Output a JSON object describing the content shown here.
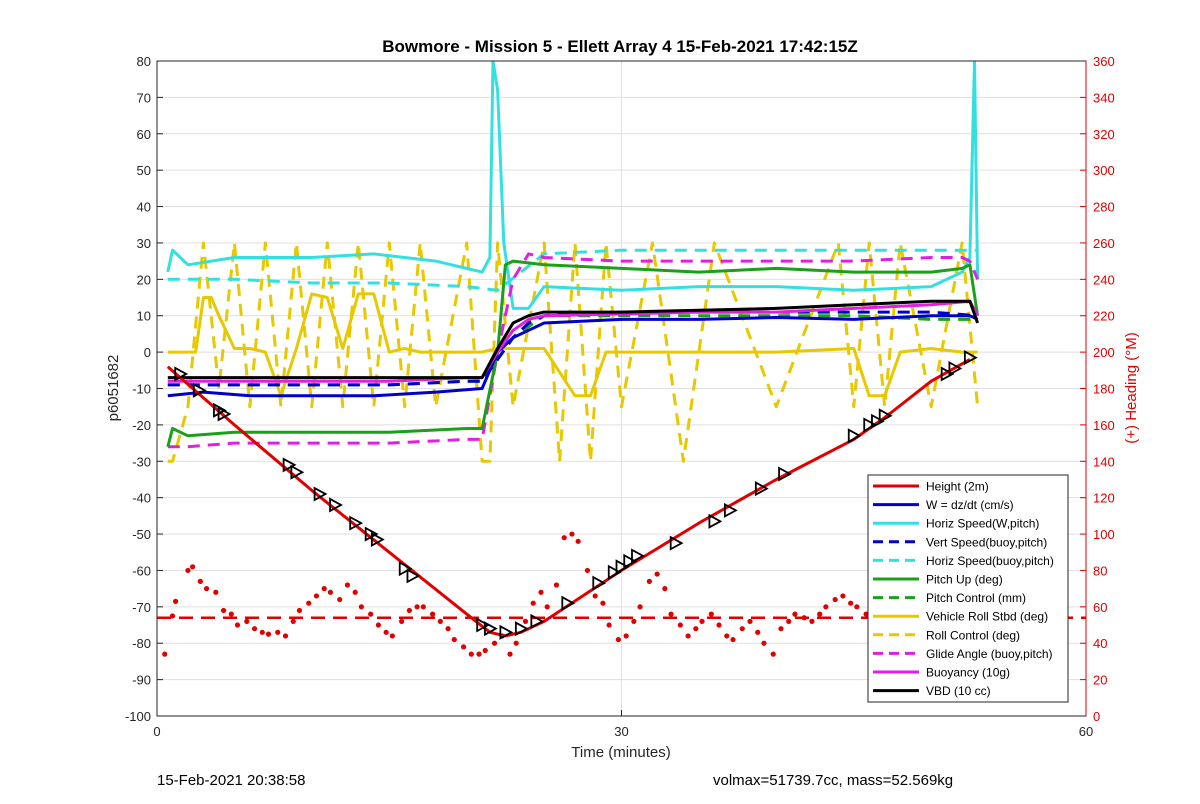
{
  "chart_data": {
    "type": "line",
    "title": "Bowmore - Mission 5 - Ellett Array 4 15-Feb-2021 17:42:15Z",
    "xlabel": "Time (minutes)",
    "ylabel": "p6051682",
    "y2label": "(+) Heading (°M)",
    "xlim": [
      0,
      60
    ],
    "ylim": [
      -100,
      80
    ],
    "y2lim": [
      0,
      360
    ],
    "xticks": [
      "0",
      "30",
      "60"
    ],
    "yticks": [
      "80",
      "70",
      "60",
      "50",
      "40",
      "30",
      "20",
      "10",
      "0",
      "-10",
      "-20",
      "-30",
      "-40",
      "-50",
      "-60",
      "-70",
      "-80",
      "-90",
      "-100"
    ],
    "y2ticks": [
      "360",
      "340",
      "320",
      "300",
      "280",
      "260",
      "240",
      "220",
      "200",
      "180",
      "160",
      "140",
      "120",
      "100",
      "80",
      "60",
      "40",
      "20",
      "0"
    ],
    "grid": true,
    "legend_position": "lower-right",
    "legend": [
      "Height (2m)",
      "W = dz/dt (cm/s)",
      "Horiz Speed(W,pitch)",
      "Vert Speed(buoy,pitch)",
      "Horiz Speed(buoy,pitch)",
      "Pitch Up (deg)",
      "Pitch Control (mm)",
      "Vehicle Roll Stbd (deg)",
      "Roll Control (deg)",
      "Glide Angle (buoy,pitch)",
      "Buoyancy (10g)",
      "VBD (10 cc)"
    ],
    "series": [
      {
        "name": "Height (2m)",
        "color": "#e00000",
        "style": "solid",
        "x": [
          0.7,
          5,
          10,
          15,
          20,
          21.5,
          22.5,
          23.5,
          25,
          30,
          35,
          40,
          45,
          47,
          50,
          52.5
        ],
        "y": [
          -4,
          -20,
          -38,
          -55,
          -72,
          -77,
          -78,
          -77,
          -74,
          -60,
          -47,
          -35,
          -24,
          -18,
          -8,
          -2
        ]
      },
      {
        "name": "W = dz/dt (cm/s)",
        "color": "#0000cc",
        "style": "solid",
        "x": [
          0.7,
          3,
          6,
          10,
          14,
          18,
          21,
          22,
          23,
          24,
          25,
          30,
          35,
          40,
          45,
          50,
          52.5,
          53
        ],
        "y": [
          -12,
          -11,
          -12,
          -12,
          -12,
          -11,
          -10,
          0,
          4,
          6,
          8,
          9,
          9,
          9.5,
          9,
          10,
          10,
          9
        ]
      },
      {
        "name": "Horiz Speed(W,pitch)",
        "color": "#33e0e0",
        "style": "solid",
        "x": [
          0.7,
          1,
          2,
          5,
          10,
          14,
          18,
          21,
          21.5,
          21.7,
          22,
          22.4,
          23,
          24,
          25,
          30,
          35,
          40,
          45,
          50,
          52,
          52.5,
          52.8,
          53
        ],
        "y": [
          22,
          28,
          24,
          26,
          26,
          27,
          25,
          22,
          26,
          80,
          72,
          30,
          12,
          12,
          18,
          17,
          18,
          18,
          17,
          18,
          22,
          26,
          80,
          20
        ]
      },
      {
        "name": "Vert Speed(buoy,pitch)",
        "color": "#0000cc",
        "style": "dashed",
        "x": [
          0.7,
          5,
          10,
          15,
          20,
          21,
          22,
          23,
          24,
          25,
          30,
          35,
          40,
          45,
          50,
          53
        ],
        "y": [
          -9,
          -9,
          -9,
          -9,
          -8,
          -8,
          -2,
          4,
          8,
          10,
          11,
          11,
          11,
          11,
          11,
          10
        ]
      },
      {
        "name": "Horiz Speed(buoy,pitch)",
        "color": "#33e0e0",
        "style": "dashed",
        "x": [
          0.7,
          5,
          10,
          15,
          20,
          22,
          25,
          30,
          35,
          40,
          45,
          50,
          53
        ],
        "y": [
          20,
          20,
          19,
          19,
          18,
          17,
          27,
          28,
          28,
          28,
          28,
          28,
          28
        ]
      },
      {
        "name": "Pitch Up (deg)",
        "color": "#1aa01a",
        "style": "solid",
        "x": [
          0.7,
          1,
          2,
          5,
          10,
          15,
          20,
          21,
          22,
          22.5,
          23,
          25,
          30,
          35,
          40,
          45,
          50,
          52,
          52.5,
          53
        ],
        "y": [
          -26,
          -21,
          -23,
          -22,
          -22,
          -22,
          -21,
          -21,
          0,
          24,
          25,
          24,
          23,
          22,
          23,
          22,
          22,
          23,
          24,
          10
        ]
      },
      {
        "name": "Pitch Control (mm)",
        "color": "#1aa01a",
        "style": "dashed",
        "x": [
          0.7,
          5,
          10,
          15,
          20,
          21,
          22,
          23,
          25,
          30,
          35,
          40,
          45,
          50,
          53
        ],
        "y": [
          -9,
          -9,
          -9,
          -9,
          -8,
          -8,
          -2,
          4,
          10,
          10,
          10,
          10,
          10,
          9,
          9
        ]
      },
      {
        "name": "Vehicle Roll Stbd (deg)",
        "color": "#e8c800",
        "style": "solid",
        "x": [
          0.7,
          2.5,
          3,
          3.5,
          4,
          5,
          6,
          7,
          8,
          9,
          10,
          11,
          12,
          13,
          14,
          15,
          16,
          17,
          20,
          21,
          22,
          25,
          27,
          28,
          29,
          30,
          35,
          40,
          45,
          46,
          47,
          48,
          50,
          52,
          53
        ],
        "y": [
          0,
          0,
          15,
          15,
          10,
          1,
          1,
          0,
          -12,
          1,
          16,
          15,
          1,
          16,
          16,
          0,
          1,
          0,
          0,
          0,
          1,
          1,
          -12,
          -12,
          0,
          0,
          0,
          0,
          1,
          -12,
          -12,
          0,
          1,
          0,
          0
        ]
      },
      {
        "name": "Roll Control (deg)",
        "color": "#e8c800",
        "style": "dashed",
        "x": [
          0.7,
          1,
          2,
          3,
          4,
          5,
          6,
          7,
          8,
          9,
          10,
          11,
          12,
          13,
          14,
          15,
          16,
          17,
          18,
          20,
          21,
          21.5,
          22,
          23,
          25,
          26,
          27,
          28,
          29,
          30,
          32,
          34,
          36,
          40,
          44,
          45,
          46,
          47,
          48,
          50,
          52,
          53
        ],
        "y": [
          -30,
          -30,
          -15,
          30,
          -10,
          30,
          -15,
          30,
          -15,
          30,
          -15,
          30,
          -15,
          30,
          -15,
          30,
          -15,
          30,
          -15,
          30,
          -30,
          -30,
          30,
          -15,
          30,
          -30,
          30,
          -30,
          30,
          -15,
          30,
          -30,
          30,
          -15,
          30,
          -15,
          30,
          -15,
          30,
          -15,
          30,
          -15
        ]
      },
      {
        "name": "Glide Angle (buoy,pitch)",
        "color": "#e020e0",
        "style": "dashed",
        "x": [
          0.7,
          1,
          2,
          5,
          10,
          15,
          20,
          21,
          22,
          23,
          24,
          25,
          30,
          35,
          40,
          45,
          50,
          52,
          52.5,
          53
        ],
        "y": [
          -26,
          -26,
          -26,
          -25,
          -25,
          -25,
          -24,
          -24,
          0,
          20,
          27,
          26,
          25,
          25,
          25,
          25,
          26,
          26,
          25,
          20
        ]
      },
      {
        "name": "Buoyancy (10g)",
        "color": "#e020e0",
        "style": "solid",
        "x": [
          0.7,
          5,
          10,
          15,
          20,
          21,
          22,
          23,
          24,
          25,
          30,
          35,
          40,
          45,
          50,
          52.5,
          53
        ],
        "y": [
          -8,
          -8,
          -8,
          -8,
          -7,
          -7,
          0,
          6,
          9,
          10,
          10.5,
          11,
          11,
          12,
          13,
          14,
          10
        ]
      },
      {
        "name": "VBD (10 cc)",
        "color": "#000000",
        "style": "solid",
        "x": [
          0.7,
          5,
          10,
          15,
          20,
          21,
          22,
          23,
          24,
          25,
          30,
          35,
          40,
          45,
          50,
          52.5,
          53
        ],
        "y": [
          -7,
          -7,
          -7,
          -7,
          -7,
          -7,
          1,
          8,
          10,
          11,
          11,
          11.5,
          12,
          13,
          14,
          14,
          8
        ]
      }
    ],
    "triangle_markers": {
      "color": "#000000",
      "x": [
        1.5,
        2.7,
        4,
        4.3,
        8.5,
        9,
        10.5,
        11.5,
        12.8,
        13.8,
        14.2,
        16,
        16.5,
        21,
        21.5,
        22.5,
        23.5,
        24.5,
        26.5,
        28.5,
        29.5,
        30,
        30.5,
        31,
        33.5,
        36,
        37,
        39,
        40.5,
        45,
        46,
        46.5,
        47,
        51,
        51.5,
        52.5
      ],
      "y": [
        -6,
        -10.5,
        -16,
        -17,
        -31,
        -33,
        -39,
        -42,
        -47,
        -50,
        -51.5,
        -59.5,
        -61.5,
        -75,
        -76,
        -77,
        -76,
        -74,
        -69,
        -63.5,
        -60.5,
        -59,
        -57.5,
        -56,
        -52.5,
        -46.5,
        -43.5,
        -37.5,
        -33.5,
        -23,
        -20,
        -19,
        -17.5,
        -6,
        -4.5,
        -1.5
      ]
    },
    "heading_dots": {
      "color": "#e00000",
      "axis": "right",
      "x": [
        0.5,
        1,
        1.2,
        2,
        2.3,
        2.8,
        3.2,
        3.8,
        4.3,
        4.8,
        5.2,
        5.8,
        6.3,
        6.8,
        7.2,
        7.8,
        8.3,
        8.8,
        9.2,
        9.8,
        10.3,
        10.8,
        11.2,
        11.8,
        12.3,
        12.8,
        13.2,
        13.8,
        14.3,
        14.8,
        15.2,
        15.8,
        16.3,
        16.8,
        17.2,
        17.8,
        18.3,
        18.8,
        19.2,
        19.8,
        20.3,
        20.8,
        21.2,
        21.8,
        22.3,
        22.8,
        23.2,
        23.8,
        24.3,
        24.8,
        25.2,
        25.8,
        26.3,
        26.8,
        27.2,
        27.8,
        28.3,
        28.8,
        29.2,
        29.8,
        30.3,
        30.8,
        31.2,
        31.8,
        32.3,
        32.8,
        33.2,
        33.8,
        34.3,
        34.8,
        35.2,
        35.8,
        36.3,
        36.8,
        37.2,
        37.8,
        38.3,
        38.8,
        39.2,
        39.8,
        40.3,
        40.8,
        41.2,
        41.8,
        42.3,
        42.8,
        43.2,
        43.8,
        44.3,
        44.8,
        45.2,
        45.8,
        46.3,
        46.8,
        47.2,
        47.8,
        48.3,
        48.8,
        49.2,
        49.8
      ],
      "y": [
        34,
        55,
        63,
        80,
        82,
        74,
        70,
        68,
        58,
        56,
        50,
        52,
        48,
        46,
        45,
        46,
        44,
        52,
        58,
        62,
        66,
        70,
        68,
        64,
        72,
        68,
        60,
        56,
        50,
        46,
        44,
        52,
        58,
        60,
        60,
        56,
        52,
        48,
        42,
        38,
        34,
        34,
        36,
        40,
        44,
        34,
        40,
        52,
        62,
        68,
        60,
        72,
        98,
        100,
        96,
        80,
        66,
        62,
        50,
        42,
        44,
        52,
        60,
        74,
        78,
        70,
        56,
        50,
        44,
        48,
        52,
        56,
        50,
        44,
        42,
        48,
        52,
        46,
        40,
        34,
        48,
        52,
        56,
        54,
        52,
        56,
        60,
        64,
        66,
        62,
        60,
        56,
        54,
        58,
        62,
        64,
        56,
        54,
        52,
        50
      ]
    },
    "heading_mean_line": {
      "color": "#e00000",
      "style": "dashed",
      "axis": "right",
      "value": 54
    }
  },
  "footer": {
    "left": "15-Feb-2021 20:38:58",
    "right": "volmax=51739.7cc, mass=52.569kg"
  }
}
